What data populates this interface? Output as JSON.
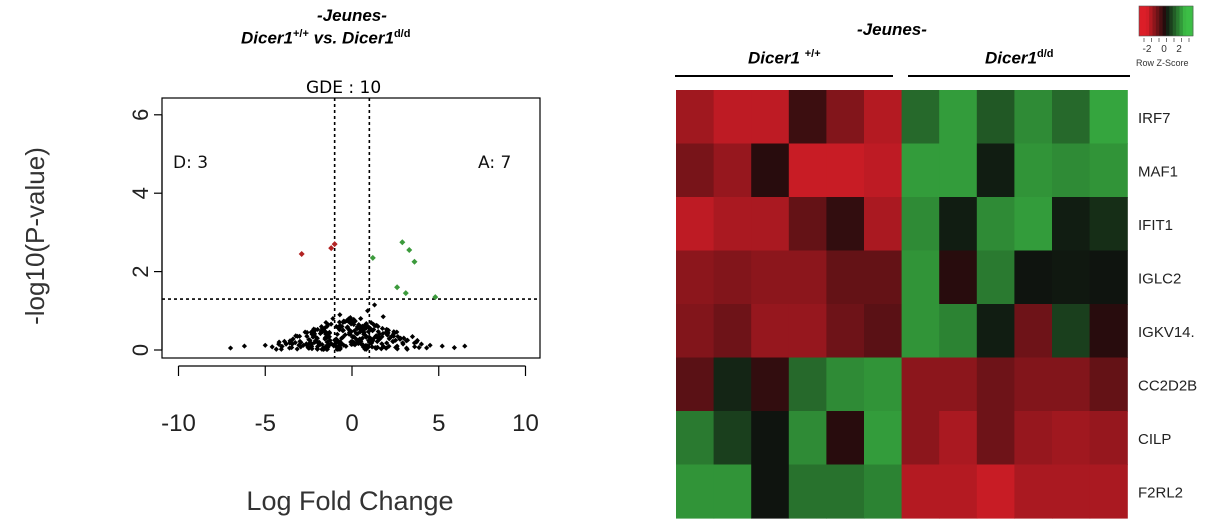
{
  "charts": [
    {
      "type": "scatter",
      "title_line1": "-Jeunes-",
      "title_line2_a": "Dicer1",
      "title_line2_sup1": "+/+",
      "title_line2_b": " vs. Dicer1",
      "title_line2_sup2": "d/d",
      "subtitle": "GDE : 10",
      "xlabel": "Log Fold Change",
      "ylabel": "-log10(P-value)",
      "xlim": [
        -10,
        10
      ],
      "ylim": [
        0,
        6
      ],
      "x_ticks": [
        "-10",
        "-5",
        "0",
        "5",
        "10"
      ],
      "y_ticks": [
        "0",
        "2",
        "4",
        "6"
      ],
      "thresholds": {
        "x": [
          -1,
          1
        ],
        "y": 1.3
      },
      "annotations": {
        "down": "D:  3",
        "up": "A: 7"
      },
      "colors": {
        "down": "#b22222",
        "up": "#3c9a3c",
        "ns": "#000000"
      },
      "points_down": [
        {
          "x": -2.9,
          "y": 2.45
        },
        {
          "x": -1.0,
          "y": 2.7
        },
        {
          "x": -1.2,
          "y": 2.6
        }
      ],
      "points_up": [
        {
          "x": 2.9,
          "y": 2.75
        },
        {
          "x": 1.2,
          "y": 2.35
        },
        {
          "x": 3.6,
          "y": 2.25
        },
        {
          "x": 3.1,
          "y": 1.45
        },
        {
          "x": 4.8,
          "y": 1.35
        },
        {
          "x": 3.3,
          "y": 2.55
        },
        {
          "x": 2.6,
          "y": 1.6
        }
      ],
      "points_ns": [
        {
          "x": -7.0,
          "y": 0.05
        },
        {
          "x": -6.2,
          "y": 0.1
        },
        {
          "x": -5.0,
          "y": 0.12
        },
        {
          "x": -4.6,
          "y": 0.08
        },
        {
          "x": -4.2,
          "y": 0.2
        },
        {
          "x": -3.8,
          "y": 0.15
        },
        {
          "x": -3.4,
          "y": 0.28
        },
        {
          "x": -3.0,
          "y": 0.22
        },
        {
          "x": -2.6,
          "y": 0.35
        },
        {
          "x": -2.3,
          "y": 0.4
        },
        {
          "x": -2.0,
          "y": 0.3
        },
        {
          "x": -1.7,
          "y": 0.55
        },
        {
          "x": -1.5,
          "y": 0.7
        },
        {
          "x": -1.3,
          "y": 0.45
        },
        {
          "x": -1.1,
          "y": 0.8
        },
        {
          "x": -0.9,
          "y": 0.6
        },
        {
          "x": -0.7,
          "y": 0.9
        },
        {
          "x": -0.5,
          "y": 0.5
        },
        {
          "x": -0.3,
          "y": 0.75
        },
        {
          "x": -0.1,
          "y": 0.4
        },
        {
          "x": 0.1,
          "y": 0.65
        },
        {
          "x": 0.3,
          "y": 0.55
        },
        {
          "x": 0.5,
          "y": 0.8
        },
        {
          "x": 0.7,
          "y": 0.45
        },
        {
          "x": 0.9,
          "y": 1.0
        },
        {
          "x": 1.1,
          "y": 0.7
        },
        {
          "x": 1.3,
          "y": 1.15
        },
        {
          "x": 1.5,
          "y": 0.6
        },
        {
          "x": 1.8,
          "y": 0.85
        },
        {
          "x": 2.1,
          "y": 0.5
        },
        {
          "x": 2.4,
          "y": 0.35
        },
        {
          "x": 2.8,
          "y": 0.3
        },
        {
          "x": 3.2,
          "y": 0.25
        },
        {
          "x": 3.6,
          "y": 0.18
        },
        {
          "x": 4.0,
          "y": 0.15
        },
        {
          "x": 4.5,
          "y": 0.12
        },
        {
          "x": 5.2,
          "y": 0.1
        },
        {
          "x": 5.9,
          "y": 0.06
        },
        {
          "x": 6.5,
          "y": 0.1
        },
        {
          "x": -2.8,
          "y": 0.12
        },
        {
          "x": -1.9,
          "y": 0.2
        },
        {
          "x": -1.0,
          "y": 0.25
        },
        {
          "x": 0.0,
          "y": 0.15
        },
        {
          "x": 1.0,
          "y": 0.2
        },
        {
          "x": 2.0,
          "y": 0.18
        },
        {
          "x": -0.6,
          "y": 0.3
        },
        {
          "x": 0.6,
          "y": 0.3
        },
        {
          "x": -1.4,
          "y": 0.32
        },
        {
          "x": 1.6,
          "y": 0.28
        },
        {
          "x": 2.6,
          "y": 0.1
        },
        {
          "x": -3.6,
          "y": 0.05
        }
      ]
    },
    {
      "type": "heatmap",
      "title_line1": "-Jeunes-",
      "group1_label": "Dicer1",
      "group1_sup": "+/+",
      "group2_label": "Dicer1",
      "group2_sup": "d/d",
      "legend_title": "Row Z-Score",
      "legend_ticks": [
        "-2",
        "0",
        "2"
      ],
      "rows": [
        "IRF7",
        "MAF1",
        "IFIT1",
        "IGLC2",
        "IGKV14.",
        "CC2D2B",
        "CILP",
        "F2RL2"
      ],
      "n_group1": 6,
      "n_group2": 6,
      "values": [
        [
          -1.4,
          -1.7,
          -1.7,
          -0.4,
          -1.1,
          -1.6,
          1.0,
          1.6,
          0.8,
          1.4,
          1.0,
          1.7
        ],
        [
          -1.0,
          -1.3,
          -0.2,
          -1.8,
          -1.8,
          -1.7,
          1.6,
          1.6,
          0.1,
          1.5,
          1.4,
          1.5
        ],
        [
          -1.7,
          -1.5,
          -1.5,
          -0.8,
          -0.3,
          -1.5,
          1.4,
          0.1,
          1.4,
          1.6,
          0.1,
          0.3
        ],
        [
          -1.2,
          -1.1,
          -1.2,
          -1.2,
          -0.8,
          -0.8,
          1.5,
          -0.2,
          1.2,
          0.0,
          0.05,
          0.0
        ],
        [
          -1.1,
          -0.9,
          -1.3,
          -1.3,
          -0.9,
          -0.7,
          1.5,
          1.3,
          0.1,
          -0.9,
          0.5,
          -0.2
        ],
        [
          -0.7,
          0.2,
          -0.3,
          1.0,
          1.4,
          1.5,
          -1.2,
          -1.2,
          -0.9,
          -1.1,
          -1.1,
          -0.8
        ],
        [
          1.2,
          0.5,
          0.0,
          1.4,
          -0.2,
          1.6,
          -1.2,
          -1.5,
          -0.9,
          -1.3,
          -1.4,
          -1.3
        ],
        [
          1.5,
          1.5,
          0.0,
          1.1,
          1.1,
          1.3,
          -1.6,
          -1.6,
          -1.8,
          -1.5,
          -1.5,
          -1.5
        ]
      ]
    }
  ]
}
